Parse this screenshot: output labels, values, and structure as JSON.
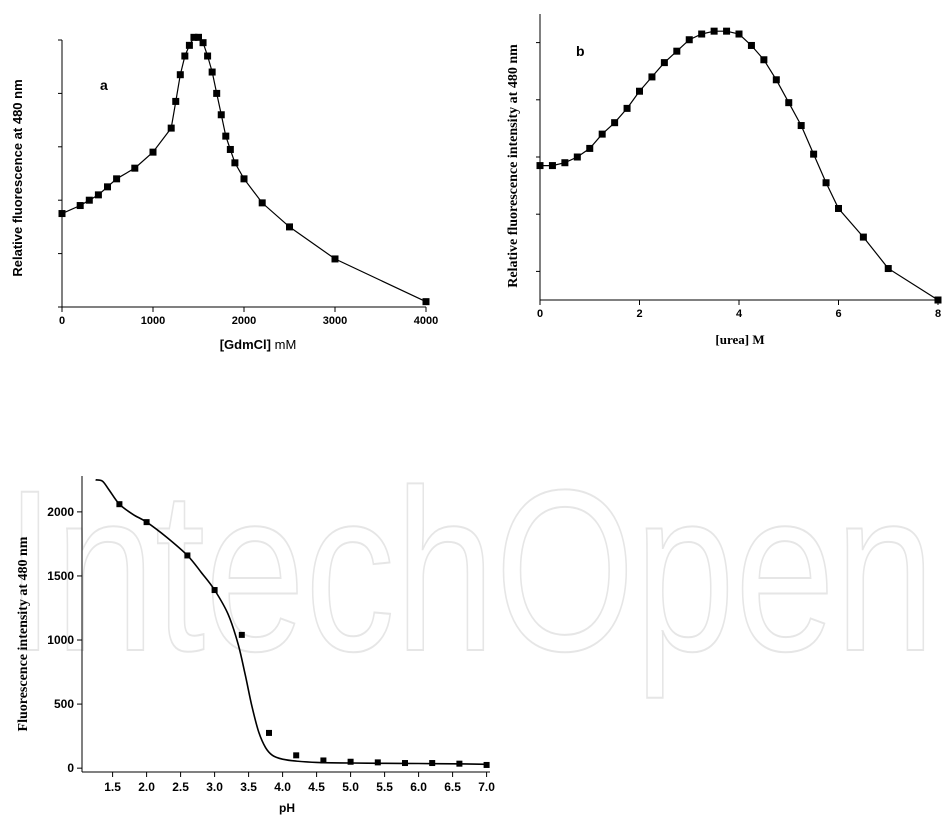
{
  "watermark": "IntechOpen",
  "chart_data": [
    {
      "id": "a",
      "type": "line",
      "panel_label": "a",
      "xlabel_bold": "[GdmCl]",
      "xlabel_rest": " mM",
      "ylabel": "Relative fluorescence at 480 nm",
      "xlim": [
        0,
        4000
      ],
      "ylim": [
        0,
        100
      ],
      "x_ticks": [
        0,
        1000,
        2000,
        3000,
        4000
      ],
      "y_tick_values": [
        0,
        20,
        40,
        60,
        80,
        100
      ],
      "show_y_tick_labels": false,
      "series": [
        {
          "x": [
            0,
            200,
            300,
            400,
            500,
            600,
            800,
            1000,
            1200,
            1250,
            1300,
            1350,
            1400,
            1450,
            1500,
            1550,
            1600,
            1650,
            1700,
            1750,
            1800,
            1850,
            1900,
            2000,
            2200,
            2500,
            3000,
            4000
          ],
          "y": [
            35,
            38,
            40,
            42,
            45,
            48,
            52,
            58,
            67,
            77,
            87,
            94,
            98,
            101,
            101,
            99,
            94,
            88,
            80,
            72,
            64,
            59,
            54,
            48,
            39,
            30,
            18,
            2
          ]
        }
      ]
    },
    {
      "id": "b",
      "type": "line",
      "panel_label": "b",
      "xlabel": "[urea] M",
      "ylabel": "Relative fluorescence intensity at 480 nm",
      "xlim": [
        0,
        8
      ],
      "ylim": [
        0,
        100
      ],
      "x_ticks": [
        0,
        2,
        4,
        6,
        8
      ],
      "y_tick_values": [
        10,
        30,
        50,
        70,
        90
      ],
      "show_y_tick_labels": false,
      "series": [
        {
          "x": [
            0,
            0.25,
            0.5,
            0.75,
            1.0,
            1.25,
            1.5,
            1.75,
            2.0,
            2.25,
            2.5,
            2.75,
            3.0,
            3.25,
            3.5,
            3.75,
            4.0,
            4.25,
            4.5,
            4.75,
            5.0,
            5.25,
            5.5,
            5.75,
            6.0,
            6.5,
            7.0,
            8.0
          ],
          "y": [
            47,
            47,
            48,
            50,
            53,
            58,
            62,
            67,
            73,
            78,
            83,
            87,
            91,
            93,
            94,
            94,
            93,
            89,
            84,
            77,
            69,
            61,
            51,
            41,
            32,
            22,
            11,
            0
          ]
        }
      ]
    },
    {
      "id": "c",
      "type": "scatter",
      "xlabel": "pH",
      "ylabel": "Fluorescence intensity at 480 nm",
      "xlim": [
        1.05,
        7.05
      ],
      "ylim": [
        -30,
        2280
      ],
      "x_ticks": [
        1.5,
        2.0,
        2.5,
        3.0,
        3.5,
        4.0,
        4.5,
        5.0,
        5.5,
        6.0,
        6.5,
        7.0
      ],
      "x_tick_labels": [
        "1.5",
        "2.0",
        "2.5",
        "3.0",
        "3.5",
        "4.0",
        "4.5",
        "5.0",
        "5.5",
        "6.0",
        "6.5",
        "7.0"
      ],
      "y_ticks": [
        0,
        500,
        1000,
        1500,
        2000
      ],
      "series": [
        {
          "points_x": [
            1.6,
            2.0,
            2.6,
            3.0,
            3.4,
            3.8,
            4.2,
            4.6,
            5.0,
            5.4,
            5.8,
            6.2,
            6.6,
            7.0
          ],
          "points_y": [
            2060,
            1920,
            1660,
            1390,
            1040,
            275,
            100,
            60,
            50,
            45,
            40,
            40,
            35,
            25
          ],
          "fit_x": [
            1.25,
            1.35,
            1.45,
            1.6,
            1.8,
            2.0,
            2.3,
            2.6,
            2.8,
            3.0,
            3.2,
            3.35,
            3.45,
            3.55,
            3.65,
            3.75,
            3.85,
            4.0,
            4.2,
            4.5,
            5.0,
            5.5,
            6.0,
            6.5,
            7.0
          ],
          "fit_y": [
            2250,
            2240,
            2170,
            2060,
            1980,
            1920,
            1800,
            1660,
            1530,
            1390,
            1200,
            960,
            730,
            480,
            280,
            160,
            100,
            70,
            55,
            45,
            40,
            38,
            36,
            34,
            30
          ]
        }
      ]
    }
  ]
}
